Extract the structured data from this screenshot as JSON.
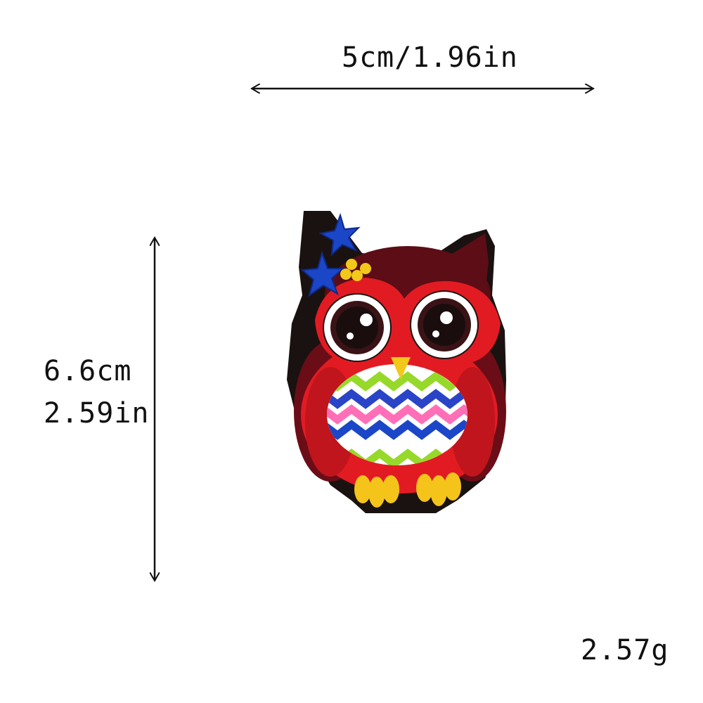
{
  "dimensions": {
    "width": "5cm/1.96in",
    "height_cm": "6.6cm",
    "height_in": "2.59in"
  },
  "weight": "2.57g",
  "product": {
    "icon": "owl-patch-illustration",
    "colors": {
      "border": "#1a1210",
      "body": "#e21b23",
      "dark": "#5c0d16",
      "star": "#1b46c8",
      "beak": "#f2c81a",
      "feet": "#f5c41b"
    }
  }
}
